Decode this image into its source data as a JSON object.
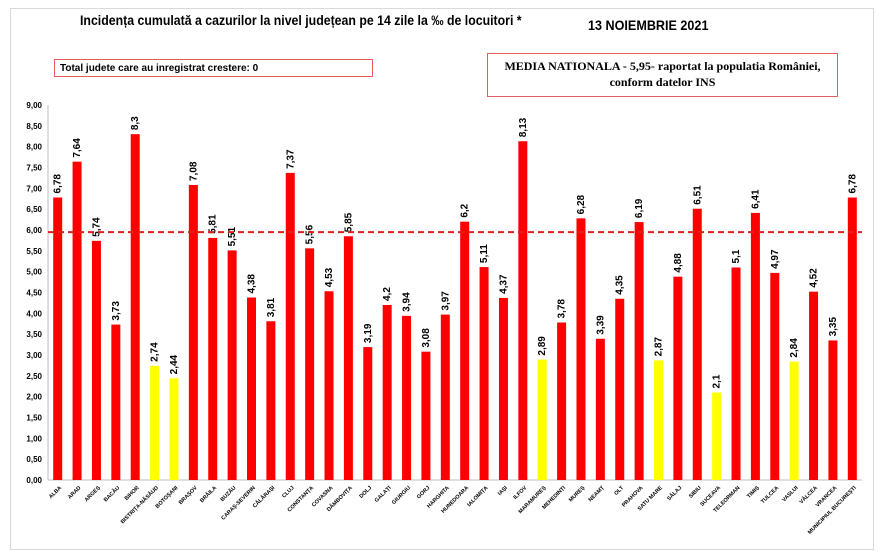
{
  "chart_data": {
    "type": "bar",
    "title": "Incidența cumulată a cazurilor la nivel județean pe 14 zile la ‰ de locuitori *",
    "date": "13 NOIEMBRIE 2021",
    "annotation_left": "Total judete care au inregistrat crestere: 0",
    "annotation_right_line1": "MEDIA NATIONALA - 5,95-  raportat la populatia  României,",
    "annotation_right_line2": "conform datelor INS",
    "reference_line": {
      "value": 5.95,
      "color": "#e02020",
      "style": "dashed"
    },
    "ylim": [
      0,
      9
    ],
    "yticks": [
      "0,00",
      "0,50",
      "1,00",
      "1,50",
      "2,00",
      "2,50",
      "3,00",
      "3,50",
      "4,00",
      "4,50",
      "5,00",
      "5,50",
      "6,00",
      "6,50",
      "7,00",
      "7,50",
      "8,00",
      "8,50",
      "9,00"
    ],
    "grid": false,
    "colors": {
      "above_threshold": "#ff0000",
      "below_threshold": "#ffff00"
    },
    "categories": [
      "ALBA",
      "ARAD",
      "ARGEȘ",
      "BACĂU",
      "BIHOR",
      "BISTRIȚA-NĂSĂUD",
      "BOTOȘANI",
      "BRAȘOV",
      "BRĂILA",
      "BUZĂU",
      "CARAȘ-SEVERIN",
      "CĂLĂRAȘI",
      "CLUJ",
      "CONSTANȚA",
      "COVASNA",
      "DÂMBOVIȚA",
      "DOLJ",
      "GALAȚI",
      "GIURGIU",
      "GORJ",
      "HARGHITA",
      "HUNEDOARA",
      "IALOMIȚA",
      "IAȘI",
      "ILFOV",
      "MARAMUREȘ",
      "MEHEDINȚI",
      "MUREȘ",
      "NEAMȚ",
      "OLT",
      "PRAHOVA",
      "SATU MARE",
      "SĂLAJ",
      "SIBIU",
      "SUCEAVA",
      "TELEORMAN",
      "TIMIȘ",
      "TULCEA",
      "VASLUI",
      "VÂLCEA",
      "VRANCEA",
      "MUNICIPIUL BUCUREȘTI"
    ],
    "values": [
      6.78,
      7.64,
      5.74,
      3.73,
      8.3,
      2.74,
      2.44,
      7.08,
      5.81,
      5.51,
      4.38,
      3.81,
      7.37,
      5.56,
      4.53,
      5.85,
      3.19,
      4.2,
      3.94,
      3.08,
      3.97,
      6.2,
      5.11,
      4.37,
      8.13,
      2.89,
      3.78,
      6.28,
      3.39,
      4.35,
      6.19,
      2.87,
      4.88,
      6.51,
      2.1,
      5.1,
      6.41,
      4.97,
      2.84,
      4.52,
      3.35,
      6.78
    ],
    "data_labels": [
      "6,78",
      "7,64",
      "5,74",
      "3,73",
      "8,3",
      "2,74",
      "2,44",
      "7,08",
      "5,81",
      "5,51",
      "4,38",
      "3,81",
      "7,37",
      "5,56",
      "4,53",
      "5,85",
      "3,19",
      "4,2",
      "3,94",
      "3,08",
      "3,97",
      "6,2",
      "5,11",
      "4,37",
      "8,13",
      "2,89",
      "3,78",
      "6,28",
      "3,39",
      "4,35",
      "6,19",
      "2,87",
      "4,88",
      "6,51",
      "2,1",
      "5,1",
      "6,41",
      "4,97",
      "2,84",
      "4,52",
      "3,35",
      "6,78"
    ],
    "bar_colors": [
      "red",
      "red",
      "red",
      "red",
      "red",
      "yellow",
      "yellow",
      "red",
      "red",
      "red",
      "red",
      "red",
      "red",
      "red",
      "red",
      "red",
      "red",
      "red",
      "red",
      "red",
      "red",
      "red",
      "red",
      "red",
      "red",
      "yellow",
      "red",
      "red",
      "red",
      "red",
      "red",
      "yellow",
      "red",
      "red",
      "yellow",
      "red",
      "red",
      "red",
      "yellow",
      "red",
      "red",
      "red"
    ]
  }
}
